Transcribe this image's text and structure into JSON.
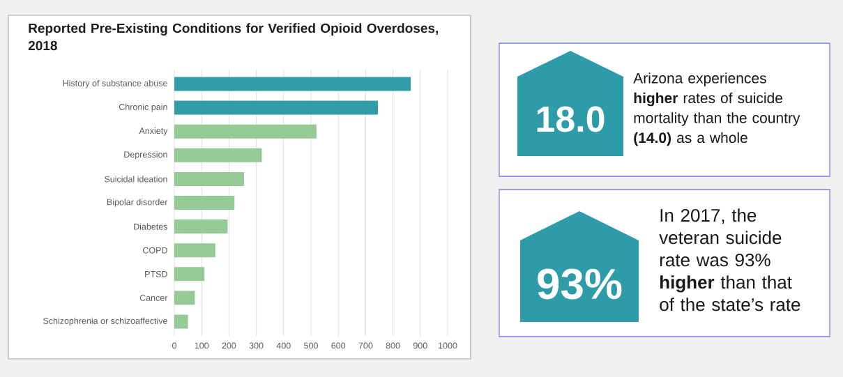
{
  "chart_data": [
    {
      "type": "bar",
      "orientation": "horizontal",
      "title": "Reported Pre-Existing Conditions for Verified Opioid Overdoses, 2018",
      "categories": [
        "History of substance abuse",
        "Chronic pain",
        "Anxiety",
        "Depression",
        "Suicidal ideation",
        "Bipolar disorder",
        "Diabetes",
        "COPD",
        "PTSD",
        "Cancer",
        "Schizophrenia or schizoaffective"
      ],
      "values": [
        865,
        745,
        520,
        320,
        255,
        220,
        195,
        150,
        110,
        75,
        50
      ],
      "colors": [
        "#329ca8",
        "#329ca8",
        "#95c995",
        "#95c995",
        "#95c995",
        "#95c995",
        "#95c995",
        "#95c995",
        "#95c995",
        "#95c995",
        "#95c995"
      ],
      "xlim": [
        0,
        1000
      ],
      "xticks": [
        0,
        100,
        200,
        300,
        400,
        500,
        600,
        700,
        800,
        900,
        1000
      ],
      "grid": "x"
    },
    {
      "type": "other",
      "title": "18.0",
      "color": "#2e9ca8",
      "annotations": [
        "Arizona experiences **higher** rates of suicide mortality than the country **(14.0)** as a whole"
      ]
    },
    {
      "type": "other",
      "title": "93%",
      "color": "#2e9ca8",
      "annotations": [
        "In 2017, the veteran suicide rate was 93% **higher** than that of the state’s rate"
      ]
    }
  ]
}
